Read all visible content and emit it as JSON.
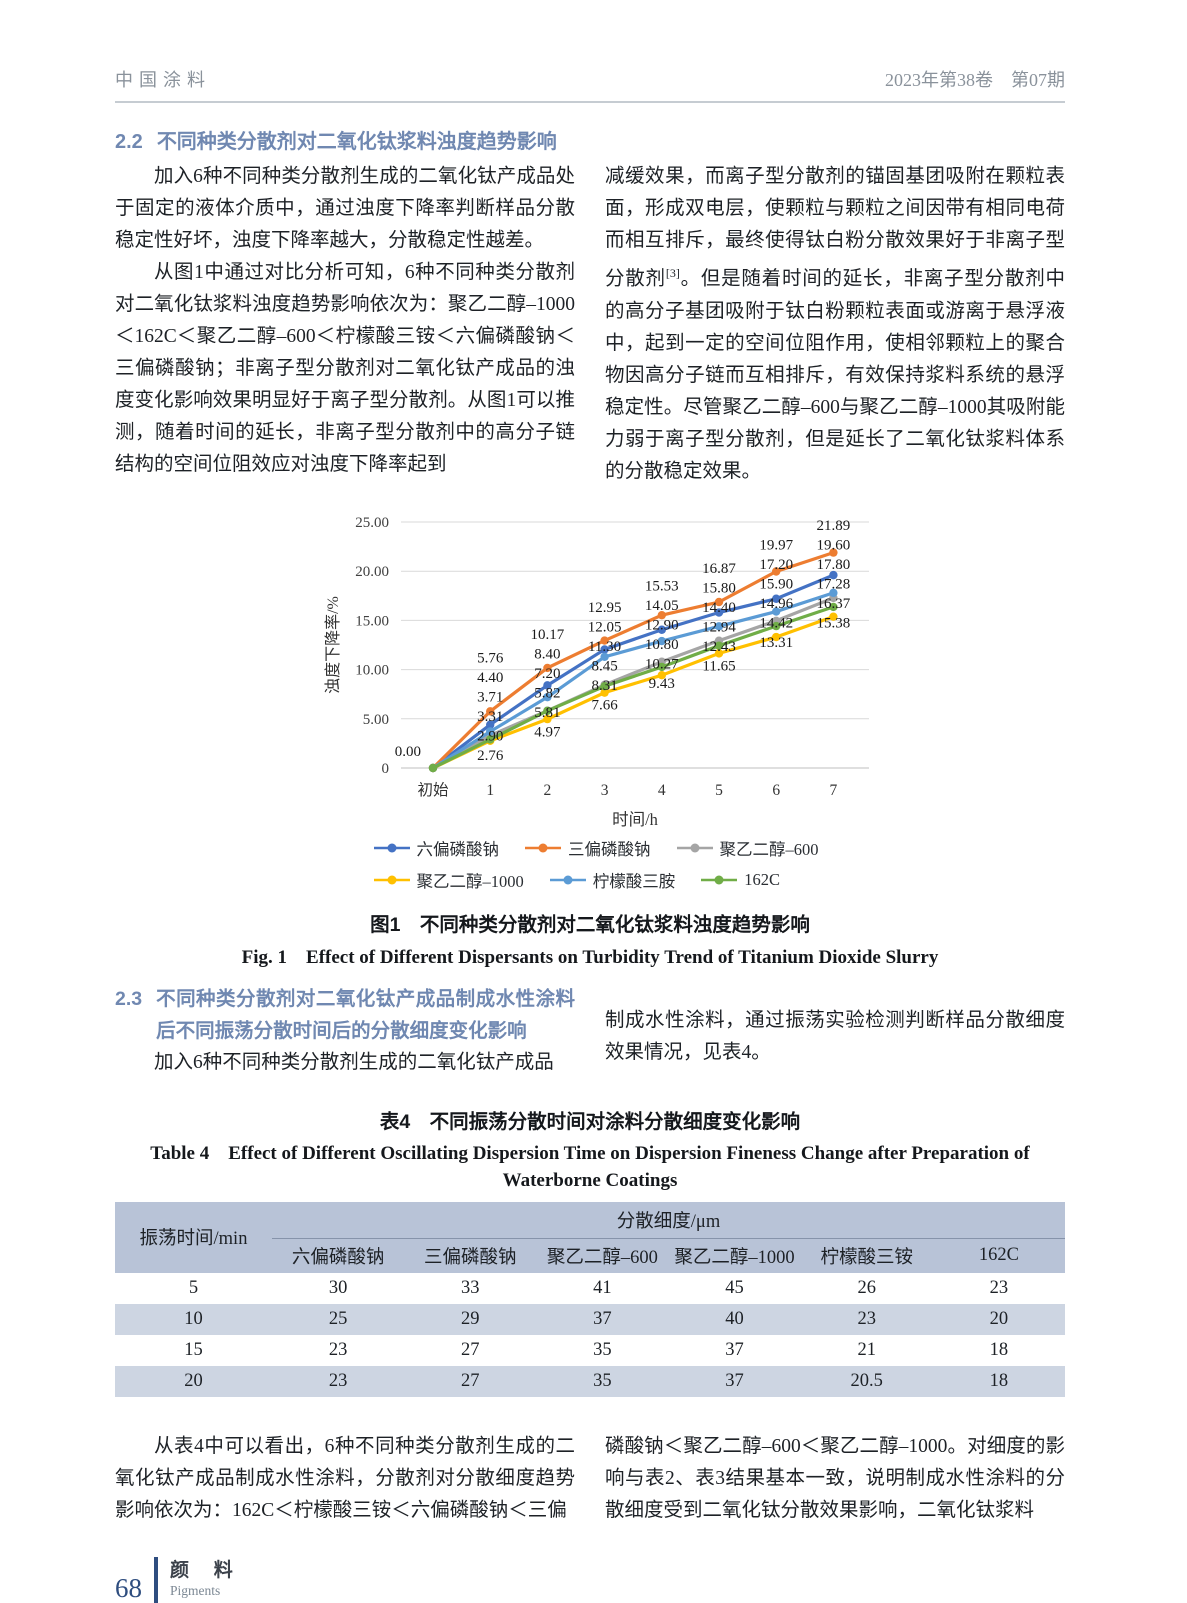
{
  "header": {
    "journal": "中国涂料",
    "issue": "2023年第38卷　第07期"
  },
  "section_2_2": {
    "number": "2.2",
    "title": "不同种类分散剂对二氧化钛浆料浊度趋势影响",
    "left_p1": "加入6种不同种类分散剂生成的二氧化钛产成品处于固定的液体介质中，通过浊度下降率判断样品分散稳定性好坏，浊度下降率越大，分散稳定性越差。",
    "left_p2": "从图1中通过对比分析可知，6种不同种类分散剂对二氧化钛浆料浊度趋势影响依次为：聚乙二醇–1000＜162C＜聚乙二醇–600＜柠檬酸三铵＜六偏磷酸钠＜三偏磷酸钠；非离子型分散剂对二氧化钛产成品的浊度变化影响效果明显好于离子型分散剂。从图1可以推测，随着时间的延长，非离子型分散剂中的高分子链结构的空间位阻效应对浊度下降率起到",
    "right_p1a": "减缓效果，而离子型分散剂的锚固基团吸附在颗粒表面，形成双电层，使颗粒与颗粒之间因带有相同电荷而相互排斥，最终使得钛白粉分散效果好于非离子型分散剂",
    "right_ref": "[3]",
    "right_p1b": "。但是随着时间的延长，非离子型分散剂中的高分子基团吸附于钛白粉颗粒表面或游离于悬浮液中，起到一定的空间位阻作用，使相邻颗粒上的聚合物因高分子链而互相排斥，有效保持浆料系统的悬浮稳定性。尽管聚乙二醇–600与聚乙二醇–1000其吸附能力弱于离子型分散剂，但是延长了二氧化钛浆料体系的分散稳定效果。"
  },
  "figure1": {
    "caption_zh": "图1　不同种类分散剂对二氧化钛浆料浊度趋势影响",
    "caption_en": "Fig. 1　Effect of Different Dispersants on Turbidity Trend of Titanium Dioxide Slurry"
  },
  "chart_data": {
    "type": "line",
    "categories": [
      "初始",
      "1",
      "2",
      "3",
      "4",
      "5",
      "6",
      "7"
    ],
    "xlabel": "时间/h",
    "ylabel": "浊度下降率/%",
    "ylim": [
      0,
      25
    ],
    "yticks": [
      {
        "label": "25.00",
        "value": 25
      },
      {
        "label": "20.00",
        "value": 20
      },
      {
        "label": "15.00",
        "value": 15
      },
      {
        "label": "10.00",
        "value": 10
      },
      {
        "label": "5.00",
        "value": 5
      },
      {
        "label": "0",
        "value": 0
      }
    ],
    "grid": true,
    "legend_position": "bottom",
    "legend_rows": [
      [
        0,
        1,
        2
      ],
      [
        3,
        4,
        5
      ]
    ],
    "origin_label": "0.00",
    "series": [
      {
        "name": "六偏磷酸钠",
        "color": "#4472C4",
        "values": [
          0,
          4.4,
          8.4,
          12.05,
          14.05,
          15.8,
          17.2,
          19.6
        ]
      },
      {
        "name": "三偏磷酸钠",
        "color": "#ED7D31",
        "values": [
          0,
          5.76,
          10.17,
          12.95,
          15.53,
          16.87,
          19.97,
          21.89
        ]
      },
      {
        "name": "聚乙二醇–600",
        "color": "#A5A5A5",
        "values": [
          0,
          3.31,
          5.82,
          8.45,
          10.8,
          12.94,
          14.96,
          17.28
        ]
      },
      {
        "name": "聚乙二醇–1000",
        "color": "#FFC000",
        "values": [
          0,
          2.76,
          4.97,
          7.66,
          9.43,
          11.65,
          13.31,
          15.38
        ]
      },
      {
        "name": "柠檬酸三胺",
        "color": "#5B9BD5",
        "values": [
          0,
          3.71,
          7.2,
          11.3,
          12.9,
          14.4,
          15.9,
          17.8
        ]
      },
      {
        "name": "162C",
        "color": "#70AD47",
        "values": [
          0,
          2.9,
          5.81,
          8.31,
          10.27,
          12.43,
          14.42,
          16.37
        ]
      }
    ]
  },
  "section_2_3": {
    "number": "2.3",
    "title": "不同种类分散剂对二氧化钛产成品制成水性涂料后不同振荡分散时间后的分散细度变化影响",
    "left_p": "加入6种不同种类分散剂生成的二氧化钛产成品",
    "right_p": "制成水性涂料，通过振荡实验检测判断样品分散细度效果情况，见表4。"
  },
  "table4": {
    "title_zh": "表4　不同振荡分散时间对涂料分散细度变化影响",
    "title_en": "Table 4　Effect of Different Oscillating Dispersion Time on Dispersion Fineness Change after Preparation of Waterborne Coatings",
    "col1_header": "振荡时间/min",
    "group_header": "分散细度/μm",
    "columns": [
      "六偏磷酸钠",
      "三偏磷酸钠",
      "聚乙二醇–600",
      "聚乙二醇–1000",
      "柠檬酸三铵",
      "162C"
    ],
    "rows": [
      {
        "time": "5",
        "values": [
          "30",
          "33",
          "41",
          "45",
          "26",
          "23"
        ]
      },
      {
        "time": "10",
        "values": [
          "25",
          "29",
          "37",
          "40",
          "23",
          "20"
        ]
      },
      {
        "time": "15",
        "values": [
          "23",
          "27",
          "35",
          "37",
          "21",
          "18"
        ]
      },
      {
        "time": "20",
        "values": [
          "23",
          "27",
          "35",
          "37",
          "20.5",
          "18"
        ]
      }
    ]
  },
  "closing": {
    "left_p": "从表4中可以看出，6种不同种类分散剂生成的二氧化钛产成品制成水性涂料，分散剂对分散细度趋势影响依次为：162C＜柠檬酸三铵＜六偏磷酸钠＜三偏",
    "right_p": "磷酸钠＜聚乙二醇–600＜聚乙二醇–1000。对细度的影响与表2、表3结果基本一致，说明制成水性涂料的分散细度受到二氧化钛分散效果影响，二氧化钛浆料"
  },
  "footer": {
    "page_number": "68",
    "section_zh": "颜 料",
    "section_en": "Pigments"
  }
}
